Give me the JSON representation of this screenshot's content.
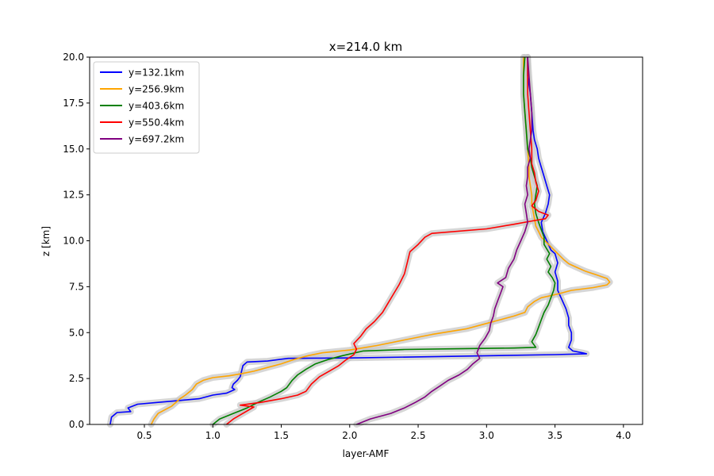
{
  "chart_data": {
    "type": "line",
    "title": "x=214.0 km",
    "xlabel": "layer-AMF",
    "ylabel": "z [km]",
    "xlim": [
      0.1,
      4.14
    ],
    "ylim": [
      0,
      20
    ],
    "xticks": [
      "0.5",
      "1.0",
      "1.5",
      "2.0",
      "2.5",
      "3.0",
      "3.5",
      "4.0"
    ],
    "xtick_values": [
      0.5,
      1.0,
      1.5,
      2.0,
      2.5,
      3.0,
      3.5,
      4.0
    ],
    "yticks": [
      "0.0",
      "2.5",
      "5.0",
      "7.5",
      "10.0",
      "12.5",
      "15.0",
      "17.5",
      "20.0"
    ],
    "ytick_values": [
      0,
      2.5,
      5.0,
      7.5,
      10.0,
      12.5,
      15.0,
      17.5,
      20.0
    ],
    "grid": false,
    "legend": "top-left",
    "uncertainty_band_color": "#c8c8c8",
    "series": [
      {
        "name": "y=132.1km",
        "color": "#0000ff",
        "points": [
          [
            0.25,
            0
          ],
          [
            0.26,
            0.4
          ],
          [
            0.3,
            0.65
          ],
          [
            0.4,
            0.7
          ],
          [
            0.38,
            0.9
          ],
          [
            0.45,
            1.1
          ],
          [
            0.6,
            1.2
          ],
          [
            0.75,
            1.3
          ],
          [
            0.9,
            1.4
          ],
          [
            1.0,
            1.6
          ],
          [
            1.1,
            1.7
          ],
          [
            1.16,
            1.9
          ],
          [
            1.14,
            2.0
          ],
          [
            1.15,
            2.2
          ],
          [
            1.18,
            2.4
          ],
          [
            1.2,
            2.6
          ],
          [
            1.21,
            2.9
          ],
          [
            1.22,
            3.2
          ],
          [
            1.25,
            3.4
          ],
          [
            1.4,
            3.45
          ],
          [
            1.55,
            3.6
          ],
          [
            2.0,
            3.62
          ],
          [
            2.7,
            3.7
          ],
          [
            3.5,
            3.8
          ],
          [
            3.73,
            3.85
          ],
          [
            3.7,
            3.9
          ],
          [
            3.63,
            4.0
          ],
          [
            3.6,
            4.2
          ],
          [
            3.62,
            4.6
          ],
          [
            3.62,
            5.0
          ],
          [
            3.6,
            5.4
          ],
          [
            3.6,
            5.8
          ],
          [
            3.58,
            6.3
          ],
          [
            3.55,
            6.8
          ],
          [
            3.52,
            7.3
          ],
          [
            3.52,
            7.8
          ],
          [
            3.5,
            8.3
          ],
          [
            3.52,
            8.8
          ],
          [
            3.5,
            9.3
          ],
          [
            3.47,
            9.5
          ],
          [
            3.44,
            10.0
          ],
          [
            3.41,
            10.5
          ],
          [
            3.4,
            11.0
          ],
          [
            3.43,
            11.5
          ],
          [
            3.45,
            12.0
          ],
          [
            3.46,
            12.5
          ],
          [
            3.44,
            13.0
          ],
          [
            3.42,
            13.5
          ],
          [
            3.4,
            14.0
          ],
          [
            3.38,
            14.5
          ],
          [
            3.37,
            15.0
          ],
          [
            3.35,
            15.5
          ],
          [
            3.34,
            16.0
          ],
          [
            3.33,
            17.0
          ],
          [
            3.32,
            18.0
          ],
          [
            3.3,
            19.0
          ],
          [
            3.3,
            20.0
          ]
        ]
      },
      {
        "name": "y=256.9km",
        "color": "#ffa500",
        "points": [
          [
            0.55,
            0
          ],
          [
            0.57,
            0.3
          ],
          [
            0.6,
            0.6
          ],
          [
            0.7,
            1.0
          ],
          [
            0.76,
            1.4
          ],
          [
            0.8,
            1.6
          ],
          [
            0.85,
            1.9
          ],
          [
            0.88,
            2.2
          ],
          [
            0.93,
            2.4
          ],
          [
            1.0,
            2.55
          ],
          [
            1.12,
            2.65
          ],
          [
            1.2,
            2.75
          ],
          [
            1.3,
            2.9
          ],
          [
            1.4,
            3.1
          ],
          [
            1.5,
            3.3
          ],
          [
            1.6,
            3.55
          ],
          [
            1.7,
            3.75
          ],
          [
            1.8,
            3.9
          ],
          [
            2.0,
            4.05
          ],
          [
            2.2,
            4.3
          ],
          [
            2.4,
            4.6
          ],
          [
            2.6,
            4.9
          ],
          [
            2.85,
            5.2
          ],
          [
            3.0,
            5.5
          ],
          [
            3.1,
            5.7
          ],
          [
            3.2,
            5.9
          ],
          [
            3.28,
            6.1
          ],
          [
            3.3,
            6.4
          ],
          [
            3.35,
            6.7
          ],
          [
            3.4,
            6.9
          ],
          [
            3.52,
            7.1
          ],
          [
            3.62,
            7.3
          ],
          [
            3.78,
            7.45
          ],
          [
            3.88,
            7.6
          ],
          [
            3.9,
            7.75
          ],
          [
            3.88,
            7.95
          ],
          [
            3.8,
            8.15
          ],
          [
            3.72,
            8.35
          ],
          [
            3.66,
            8.55
          ],
          [
            3.6,
            8.75
          ],
          [
            3.56,
            9.0
          ],
          [
            3.52,
            9.3
          ],
          [
            3.48,
            9.6
          ],
          [
            3.44,
            9.9
          ],
          [
            3.4,
            10.2
          ],
          [
            3.38,
            10.5
          ],
          [
            3.36,
            10.8
          ],
          [
            3.35,
            11.2
          ],
          [
            3.34,
            11.6
          ],
          [
            3.33,
            12.0
          ],
          [
            3.33,
            12.5
          ],
          [
            3.32,
            13.0
          ],
          [
            3.31,
            13.5
          ],
          [
            3.31,
            14.0
          ],
          [
            3.3,
            15.0
          ],
          [
            3.29,
            16.0
          ],
          [
            3.28,
            17.0
          ],
          [
            3.27,
            18.0
          ],
          [
            3.27,
            19.0
          ],
          [
            3.27,
            20.0
          ]
        ]
      },
      {
        "name": "y=403.6km",
        "color": "#008000",
        "points": [
          [
            1.0,
            0
          ],
          [
            1.05,
            0.3
          ],
          [
            1.15,
            0.6
          ],
          [
            1.25,
            0.9
          ],
          [
            1.33,
            1.2
          ],
          [
            1.42,
            1.5
          ],
          [
            1.5,
            1.8
          ],
          [
            1.54,
            2.0
          ],
          [
            1.58,
            2.4
          ],
          [
            1.62,
            2.7
          ],
          [
            1.68,
            3.0
          ],
          [
            1.75,
            3.3
          ],
          [
            1.85,
            3.55
          ],
          [
            1.95,
            3.75
          ],
          [
            2.1,
            4.0
          ],
          [
            2.4,
            4.08
          ],
          [
            2.8,
            4.12
          ],
          [
            3.2,
            4.16
          ],
          [
            3.36,
            4.2
          ],
          [
            3.33,
            4.5
          ],
          [
            3.36,
            4.9
          ],
          [
            3.38,
            5.3
          ],
          [
            3.4,
            5.7
          ],
          [
            3.42,
            6.1
          ],
          [
            3.45,
            6.5
          ],
          [
            3.47,
            6.9
          ],
          [
            3.49,
            7.3
          ],
          [
            3.5,
            7.7
          ],
          [
            3.48,
            8.0
          ],
          [
            3.45,
            8.3
          ],
          [
            3.47,
            8.6
          ],
          [
            3.44,
            9.0
          ],
          [
            3.46,
            9.3
          ],
          [
            3.42,
            9.8
          ],
          [
            3.42,
            10.2
          ],
          [
            3.4,
            10.6
          ],
          [
            3.38,
            11.0
          ],
          [
            3.36,
            11.5
          ],
          [
            3.35,
            12.0
          ],
          [
            3.36,
            12.5
          ],
          [
            3.37,
            13.0
          ],
          [
            3.35,
            13.5
          ],
          [
            3.33,
            14.0
          ],
          [
            3.32,
            14.5
          ],
          [
            3.3,
            15.0
          ],
          [
            3.29,
            16.0
          ],
          [
            3.28,
            17.0
          ],
          [
            3.27,
            18.0
          ],
          [
            3.27,
            19.0
          ],
          [
            3.28,
            20.0
          ]
        ]
      },
      {
        "name": "y=550.4km",
        "color": "#ff0000",
        "points": [
          [
            1.1,
            0
          ],
          [
            1.15,
            0.3
          ],
          [
            1.22,
            0.6
          ],
          [
            1.3,
            0.95
          ],
          [
            1.2,
            1.05
          ],
          [
            1.35,
            1.2
          ],
          [
            1.5,
            1.4
          ],
          [
            1.62,
            1.6
          ],
          [
            1.68,
            1.8
          ],
          [
            1.72,
            2.2
          ],
          [
            1.78,
            2.6
          ],
          [
            1.85,
            2.9
          ],
          [
            1.92,
            3.2
          ],
          [
            1.97,
            3.5
          ],
          [
            2.03,
            3.8
          ],
          [
            2.05,
            4.1
          ],
          [
            2.03,
            4.4
          ],
          [
            2.08,
            4.8
          ],
          [
            2.12,
            5.2
          ],
          [
            2.18,
            5.6
          ],
          [
            2.24,
            6.1
          ],
          [
            2.28,
            6.6
          ],
          [
            2.32,
            7.1
          ],
          [
            2.36,
            7.6
          ],
          [
            2.4,
            8.2
          ],
          [
            2.42,
            8.8
          ],
          [
            2.44,
            9.4
          ],
          [
            2.5,
            9.8
          ],
          [
            2.55,
            10.2
          ],
          [
            2.6,
            10.4
          ],
          [
            3.0,
            10.65
          ],
          [
            3.2,
            10.9
          ],
          [
            3.35,
            11.1
          ],
          [
            3.43,
            11.2
          ],
          [
            3.45,
            11.4
          ],
          [
            3.38,
            11.6
          ],
          [
            3.33,
            11.9
          ],
          [
            3.36,
            12.2
          ],
          [
            3.38,
            12.7
          ],
          [
            3.36,
            13.2
          ],
          [
            3.35,
            13.7
          ],
          [
            3.33,
            14.2
          ],
          [
            3.33,
            15.0
          ],
          [
            3.32,
            16.0
          ],
          [
            3.31,
            17.0
          ],
          [
            3.3,
            18.0
          ],
          [
            3.3,
            19.0
          ],
          [
            3.3,
            20.0
          ]
        ]
      },
      {
        "name": "y=697.2km",
        "color": "#800080",
        "points": [
          [
            2.05,
            0
          ],
          [
            2.15,
            0.3
          ],
          [
            2.3,
            0.6
          ],
          [
            2.4,
            0.9
          ],
          [
            2.48,
            1.2
          ],
          [
            2.55,
            1.5
          ],
          [
            2.6,
            1.8
          ],
          [
            2.66,
            2.1
          ],
          [
            2.72,
            2.4
          ],
          [
            2.8,
            2.7
          ],
          [
            2.86,
            3.0
          ],
          [
            2.9,
            3.3
          ],
          [
            2.95,
            3.6
          ],
          [
            2.93,
            3.9
          ],
          [
            2.95,
            4.3
          ],
          [
            2.99,
            4.7
          ],
          [
            3.02,
            5.1
          ],
          [
            3.03,
            5.5
          ],
          [
            3.05,
            5.9
          ],
          [
            3.06,
            6.3
          ],
          [
            3.08,
            6.7
          ],
          [
            3.1,
            7.1
          ],
          [
            3.12,
            7.5
          ],
          [
            3.08,
            7.7
          ],
          [
            3.14,
            8.0
          ],
          [
            3.16,
            8.5
          ],
          [
            3.2,
            9.0
          ],
          [
            3.22,
            9.5
          ],
          [
            3.25,
            10.0
          ],
          [
            3.28,
            10.5
          ],
          [
            3.3,
            11.0
          ],
          [
            3.29,
            11.5
          ],
          [
            3.28,
            12.0
          ],
          [
            3.3,
            12.5
          ],
          [
            3.29,
            13.0
          ],
          [
            3.3,
            13.5
          ],
          [
            3.3,
            14.0
          ],
          [
            3.32,
            14.5
          ],
          [
            3.31,
            15.0
          ],
          [
            3.32,
            15.5
          ],
          [
            3.33,
            16.0
          ],
          [
            3.33,
            17.0
          ],
          [
            3.32,
            18.0
          ],
          [
            3.31,
            19.0
          ],
          [
            3.3,
            20.0
          ]
        ]
      }
    ]
  }
}
